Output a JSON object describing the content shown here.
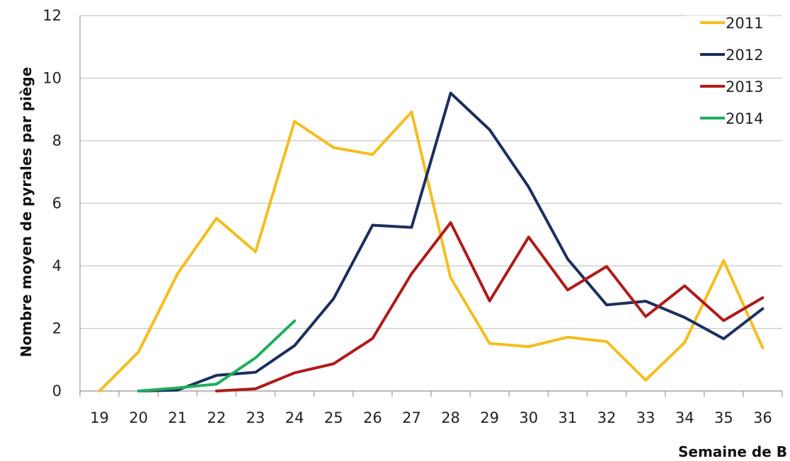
{
  "chart_data": {
    "type": "line",
    "title": "",
    "xlabel": "Semaine de B",
    "ylabel": "Nombre moyen de pyrales par piège",
    "ylim": [
      0,
      12
    ],
    "yticks": [
      0,
      2,
      4,
      6,
      8,
      10,
      12
    ],
    "x": [
      19,
      20,
      21,
      22,
      23,
      24,
      25,
      26,
      27,
      28,
      29,
      30,
      31,
      32,
      33,
      34,
      35,
      36
    ],
    "grid": "horizontal",
    "legend_position": "top-right",
    "series": [
      {
        "name": "2011",
        "color": "#f5bd1f",
        "values": [
          0.0,
          1.25,
          3.75,
          5.52,
          4.45,
          8.62,
          7.78,
          7.56,
          8.92,
          3.62,
          1.52,
          1.42,
          1.72,
          1.58,
          0.35,
          1.55,
          4.17,
          1.38
        ]
      },
      {
        "name": "2012",
        "color": "#1b2f5e",
        "values": [
          null,
          0.0,
          0.03,
          0.5,
          0.6,
          1.45,
          2.95,
          5.3,
          5.23,
          9.52,
          8.35,
          6.52,
          4.22,
          2.75,
          2.87,
          2.35,
          1.67,
          2.63
        ]
      },
      {
        "name": "2013",
        "color": "#b01a1a",
        "values": [
          null,
          null,
          null,
          0.0,
          0.07,
          0.58,
          0.87,
          1.68,
          3.75,
          5.38,
          2.88,
          4.92,
          3.23,
          3.98,
          2.38,
          3.36,
          2.25,
          2.98
        ]
      },
      {
        "name": "2014",
        "color": "#1fae5c",
        "values": [
          null,
          0.0,
          0.1,
          0.22,
          1.06,
          2.24,
          null,
          null,
          null,
          null,
          null,
          null,
          null,
          null,
          null,
          null,
          null,
          null
        ]
      }
    ]
  }
}
